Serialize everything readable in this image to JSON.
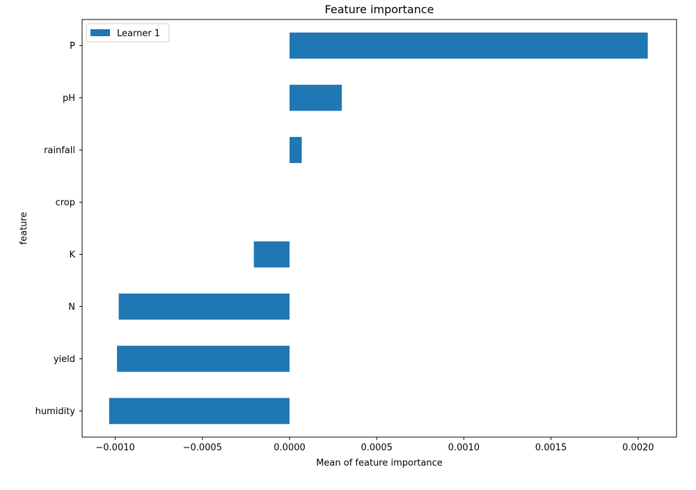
{
  "chart_data": {
    "type": "bar",
    "orientation": "horizontal",
    "title": "Feature importance",
    "xlabel": "Mean of feature importance",
    "ylabel": "feature",
    "categories": [
      "P",
      "pH",
      "rainfall",
      "crop",
      "K",
      "N",
      "yield",
      "humidity"
    ],
    "series": [
      {
        "name": "Learner 1",
        "color": "#1f77b4",
        "values": [
          0.002055,
          0.0003,
          7e-05,
          0.0,
          -0.000205,
          -0.00098,
          -0.00099,
          -0.001035
        ]
      }
    ],
    "xlim": [
      -0.00119,
      0.00222
    ],
    "x_ticks": [
      -0.001,
      -0.0005,
      0.0,
      0.0005,
      0.001,
      0.0015,
      0.002
    ],
    "x_tick_labels": [
      "−0.0010",
      "−0.0005",
      "0.0000",
      "0.0005",
      "0.0010",
      "0.0015",
      "0.0020"
    ],
    "grid": false,
    "legend_position": "top-left"
  }
}
